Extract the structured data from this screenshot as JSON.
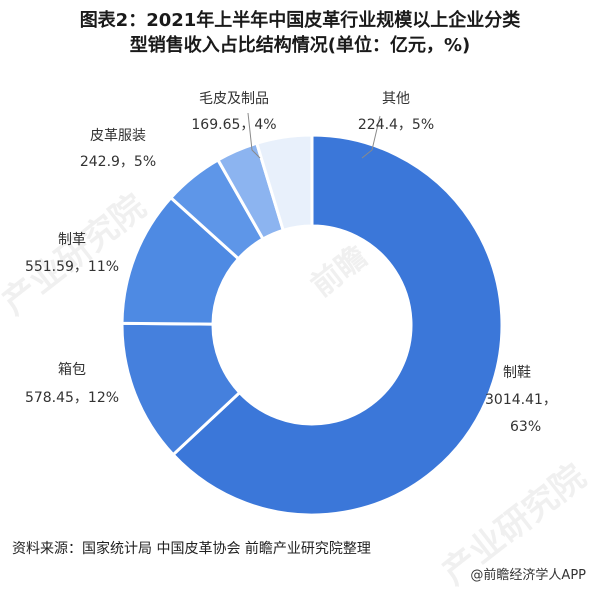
{
  "title": {
    "line1": "图表2：2021年上半年中国皮革行业规模以上企业分类",
    "line2": "型销售收入占比结构情况(单位：亿元，%)"
  },
  "source": "资料来源：国家统计局 中国皮革协会 前瞻产业研究院整理",
  "credit": "@前瞻经济学人APP",
  "watermarks": [
    "产业研究院",
    "前瞻",
    "产业研究院"
  ],
  "colors": {
    "slices": [
      "#3b77d9",
      "#4580dd",
      "#4e8ae3",
      "#5e96e8",
      "#8cb4f0",
      "#e8f0fb"
    ],
    "separator": "#ffffff",
    "leader": "#8a8a8a"
  },
  "chart_data": {
    "type": "pie",
    "variant": "donut",
    "unit": "亿元",
    "slices": [
      {
        "name": "制鞋",
        "value": 3014.41,
        "percent": 63,
        "label_value": "3014.41，",
        "label_percent": "63%"
      },
      {
        "name": "箱包",
        "value": 578.45,
        "percent": 12,
        "label_value": "578.45，12%"
      },
      {
        "name": "制革",
        "value": 551.59,
        "percent": 11,
        "label_value": "551.59，11%"
      },
      {
        "name": "皮革服装",
        "value": 242.9,
        "percent": 5,
        "label_value": "242.9，5%"
      },
      {
        "name": "毛皮及制品",
        "value": 169.65,
        "percent": 4,
        "label_value": "169.65，4%"
      },
      {
        "name": "其他",
        "value": 224.4,
        "percent": 5,
        "label_value": "224.4，5%"
      }
    ]
  }
}
